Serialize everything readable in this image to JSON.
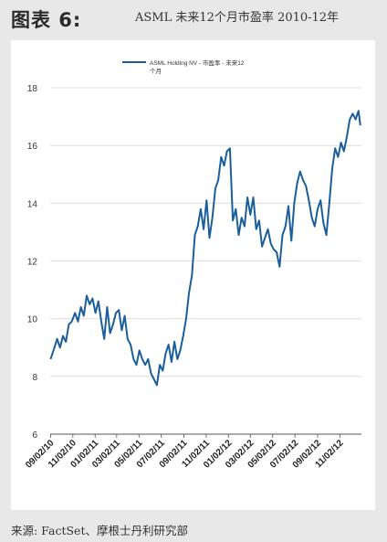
{
  "header": {
    "figure_label": "图表 6:",
    "figure_title": "ASML 未来12个月市盈率 2010-12年"
  },
  "footer": {
    "source": "来源: FactSet、摩根士丹利研究部"
  },
  "colors": {
    "series": "#1a5f9c",
    "grid": "#d9d9d9",
    "axis": "#555555",
    "background": "#ffffff",
    "page": "#e8e8e8"
  },
  "chart_data": {
    "type": "line",
    "title": "",
    "xlabel": "",
    "ylabel": "",
    "ylim": [
      6,
      18
    ],
    "yticks": [
      6,
      8,
      10,
      12,
      14,
      16,
      18
    ],
    "xlim": [
      "2010-09-01",
      "2012-12-31"
    ],
    "xtick_labels": [
      "09/02/10",
      "11/02/10",
      "01/02/11",
      "03/02/11",
      "05/02/11",
      "07/02/11",
      "09/02/11",
      "11/02/11",
      "01/02/12",
      "03/02/12",
      "05/02/12",
      "07/02/12",
      "09/02/12",
      "11/02/12"
    ],
    "xtick_dates": [
      "2010-09-02",
      "2010-11-02",
      "2011-01-02",
      "2011-03-02",
      "2011-05-02",
      "2011-07-02",
      "2011-09-02",
      "2011-11-02",
      "2012-01-02",
      "2012-03-02",
      "2012-05-02",
      "2012-07-02",
      "2012-09-02",
      "2012-11-02"
    ],
    "grid": true,
    "legend_position": "top",
    "series": [
      {
        "name": "ASML Holding NV - 市盈率 - 未来12个月",
        "x": [
          "2010-09-02",
          "2010-09-10",
          "2010-09-20",
          "2010-09-28",
          "2010-10-06",
          "2010-10-14",
          "2010-10-22",
          "2010-10-30",
          "2010-11-08",
          "2010-11-16",
          "2010-11-24",
          "2010-12-02",
          "2010-12-10",
          "2010-12-18",
          "2010-12-26",
          "2011-01-03",
          "2011-01-11",
          "2011-01-19",
          "2011-01-27",
          "2011-02-04",
          "2011-02-12",
          "2011-02-20",
          "2011-02-28",
          "2011-03-08",
          "2011-03-16",
          "2011-03-24",
          "2011-04-01",
          "2011-04-09",
          "2011-04-17",
          "2011-04-25",
          "2011-05-03",
          "2011-05-11",
          "2011-05-19",
          "2011-05-27",
          "2011-06-04",
          "2011-06-12",
          "2011-06-20",
          "2011-06-28",
          "2011-07-06",
          "2011-07-14",
          "2011-07-22",
          "2011-07-30",
          "2011-08-07",
          "2011-08-15",
          "2011-08-23",
          "2011-08-31",
          "2011-09-08",
          "2011-09-16",
          "2011-09-24",
          "2011-10-02",
          "2011-10-10",
          "2011-10-18",
          "2011-10-26",
          "2011-11-03",
          "2011-11-11",
          "2011-11-19",
          "2011-11-27",
          "2011-12-05",
          "2011-12-13",
          "2011-12-21",
          "2011-12-29",
          "2012-01-06",
          "2012-01-14",
          "2012-01-22",
          "2012-01-30",
          "2012-02-07",
          "2012-02-15",
          "2012-02-23",
          "2012-03-02",
          "2012-03-10",
          "2012-03-18",
          "2012-03-26",
          "2012-04-03",
          "2012-04-11",
          "2012-04-19",
          "2012-04-27",
          "2012-05-05",
          "2012-05-13",
          "2012-05-21",
          "2012-05-29",
          "2012-06-06",
          "2012-06-14",
          "2012-06-22",
          "2012-06-30",
          "2012-07-08",
          "2012-07-16",
          "2012-07-24",
          "2012-08-01",
          "2012-08-09",
          "2012-08-17",
          "2012-08-25",
          "2012-09-02",
          "2012-09-10",
          "2012-09-18",
          "2012-09-26",
          "2012-10-04",
          "2012-10-12",
          "2012-10-20",
          "2012-10-28",
          "2012-11-05",
          "2012-11-13",
          "2012-11-21",
          "2012-11-29",
          "2012-12-07",
          "2012-12-15",
          "2012-12-23",
          "2012-12-28"
        ],
        "values": [
          8.6,
          8.9,
          9.3,
          9.0,
          9.4,
          9.2,
          9.8,
          9.9,
          10.2,
          9.9,
          10.4,
          10.1,
          10.8,
          10.5,
          10.7,
          10.2,
          10.6,
          9.9,
          9.3,
          10.4,
          9.5,
          9.8,
          10.2,
          10.3,
          9.6,
          10.1,
          9.3,
          9.1,
          8.6,
          8.4,
          8.9,
          8.6,
          8.4,
          8.6,
          8.1,
          7.9,
          7.7,
          8.4,
          8.2,
          8.8,
          9.1,
          8.5,
          9.2,
          8.6,
          8.9,
          9.4,
          10.0,
          10.9,
          11.5,
          12.9,
          13.2,
          13.8,
          13.1,
          14.1,
          12.8,
          13.5,
          14.5,
          14.8,
          15.6,
          15.3,
          15.8,
          15.9,
          13.4,
          13.8,
          12.9,
          13.5,
          13.2,
          14.2,
          13.6,
          14.2,
          13.1,
          13.4,
          12.5,
          12.8,
          13.1,
          12.6,
          12.4,
          12.3,
          11.8,
          12.9,
          13.2,
          13.9,
          12.7,
          14.0,
          14.7,
          15.1,
          14.8,
          14.6,
          14.1,
          13.5,
          13.2,
          13.8,
          14.1,
          13.3,
          12.9,
          14.0,
          15.2,
          15.9,
          15.6,
          16.1,
          15.8,
          16.3,
          16.9,
          17.1,
          16.9,
          17.2,
          16.7
        ]
      }
    ]
  }
}
